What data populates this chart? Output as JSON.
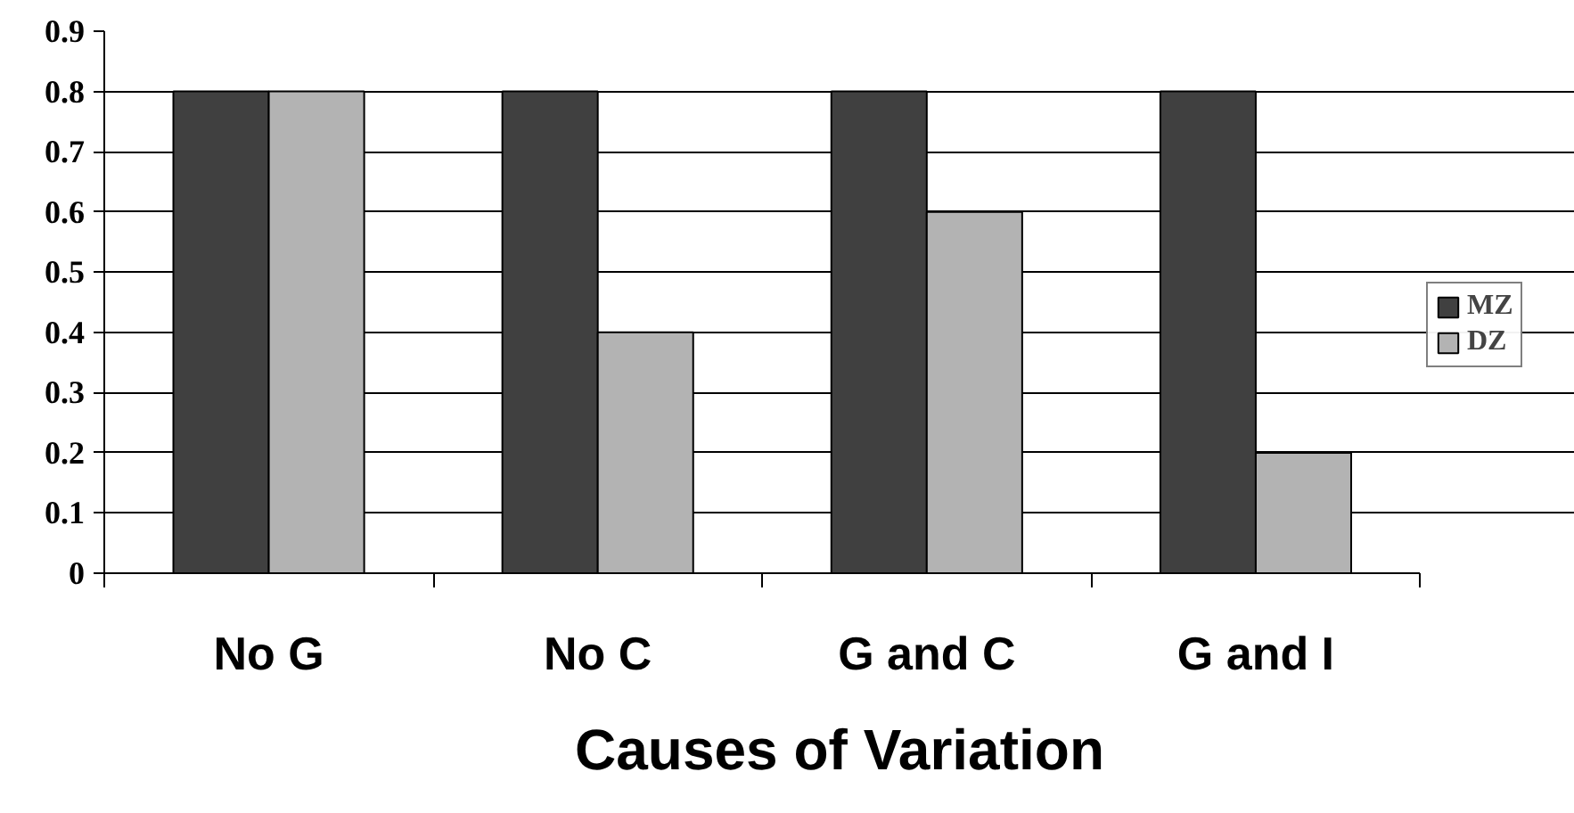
{
  "chart_data": {
    "type": "bar",
    "xlabel": "Causes of Variation",
    "categories": [
      "No G",
      "No C",
      "G and C",
      "G and I"
    ],
    "series": [
      {
        "name": "MZ",
        "color": "#404040",
        "values": [
          0.8,
          0.8,
          0.8,
          0.8
        ]
      },
      {
        "name": "DZ",
        "color": "#b3b3b3",
        "values": [
          0.8,
          0.4,
          0.6,
          0.2
        ]
      }
    ],
    "ylim": [
      0,
      0.9
    ],
    "yticks": [
      0,
      0.1,
      0.2,
      0.3,
      0.4,
      0.5,
      0.6,
      0.7,
      0.8,
      0.9
    ],
    "grid": "y",
    "legend": "right"
  }
}
